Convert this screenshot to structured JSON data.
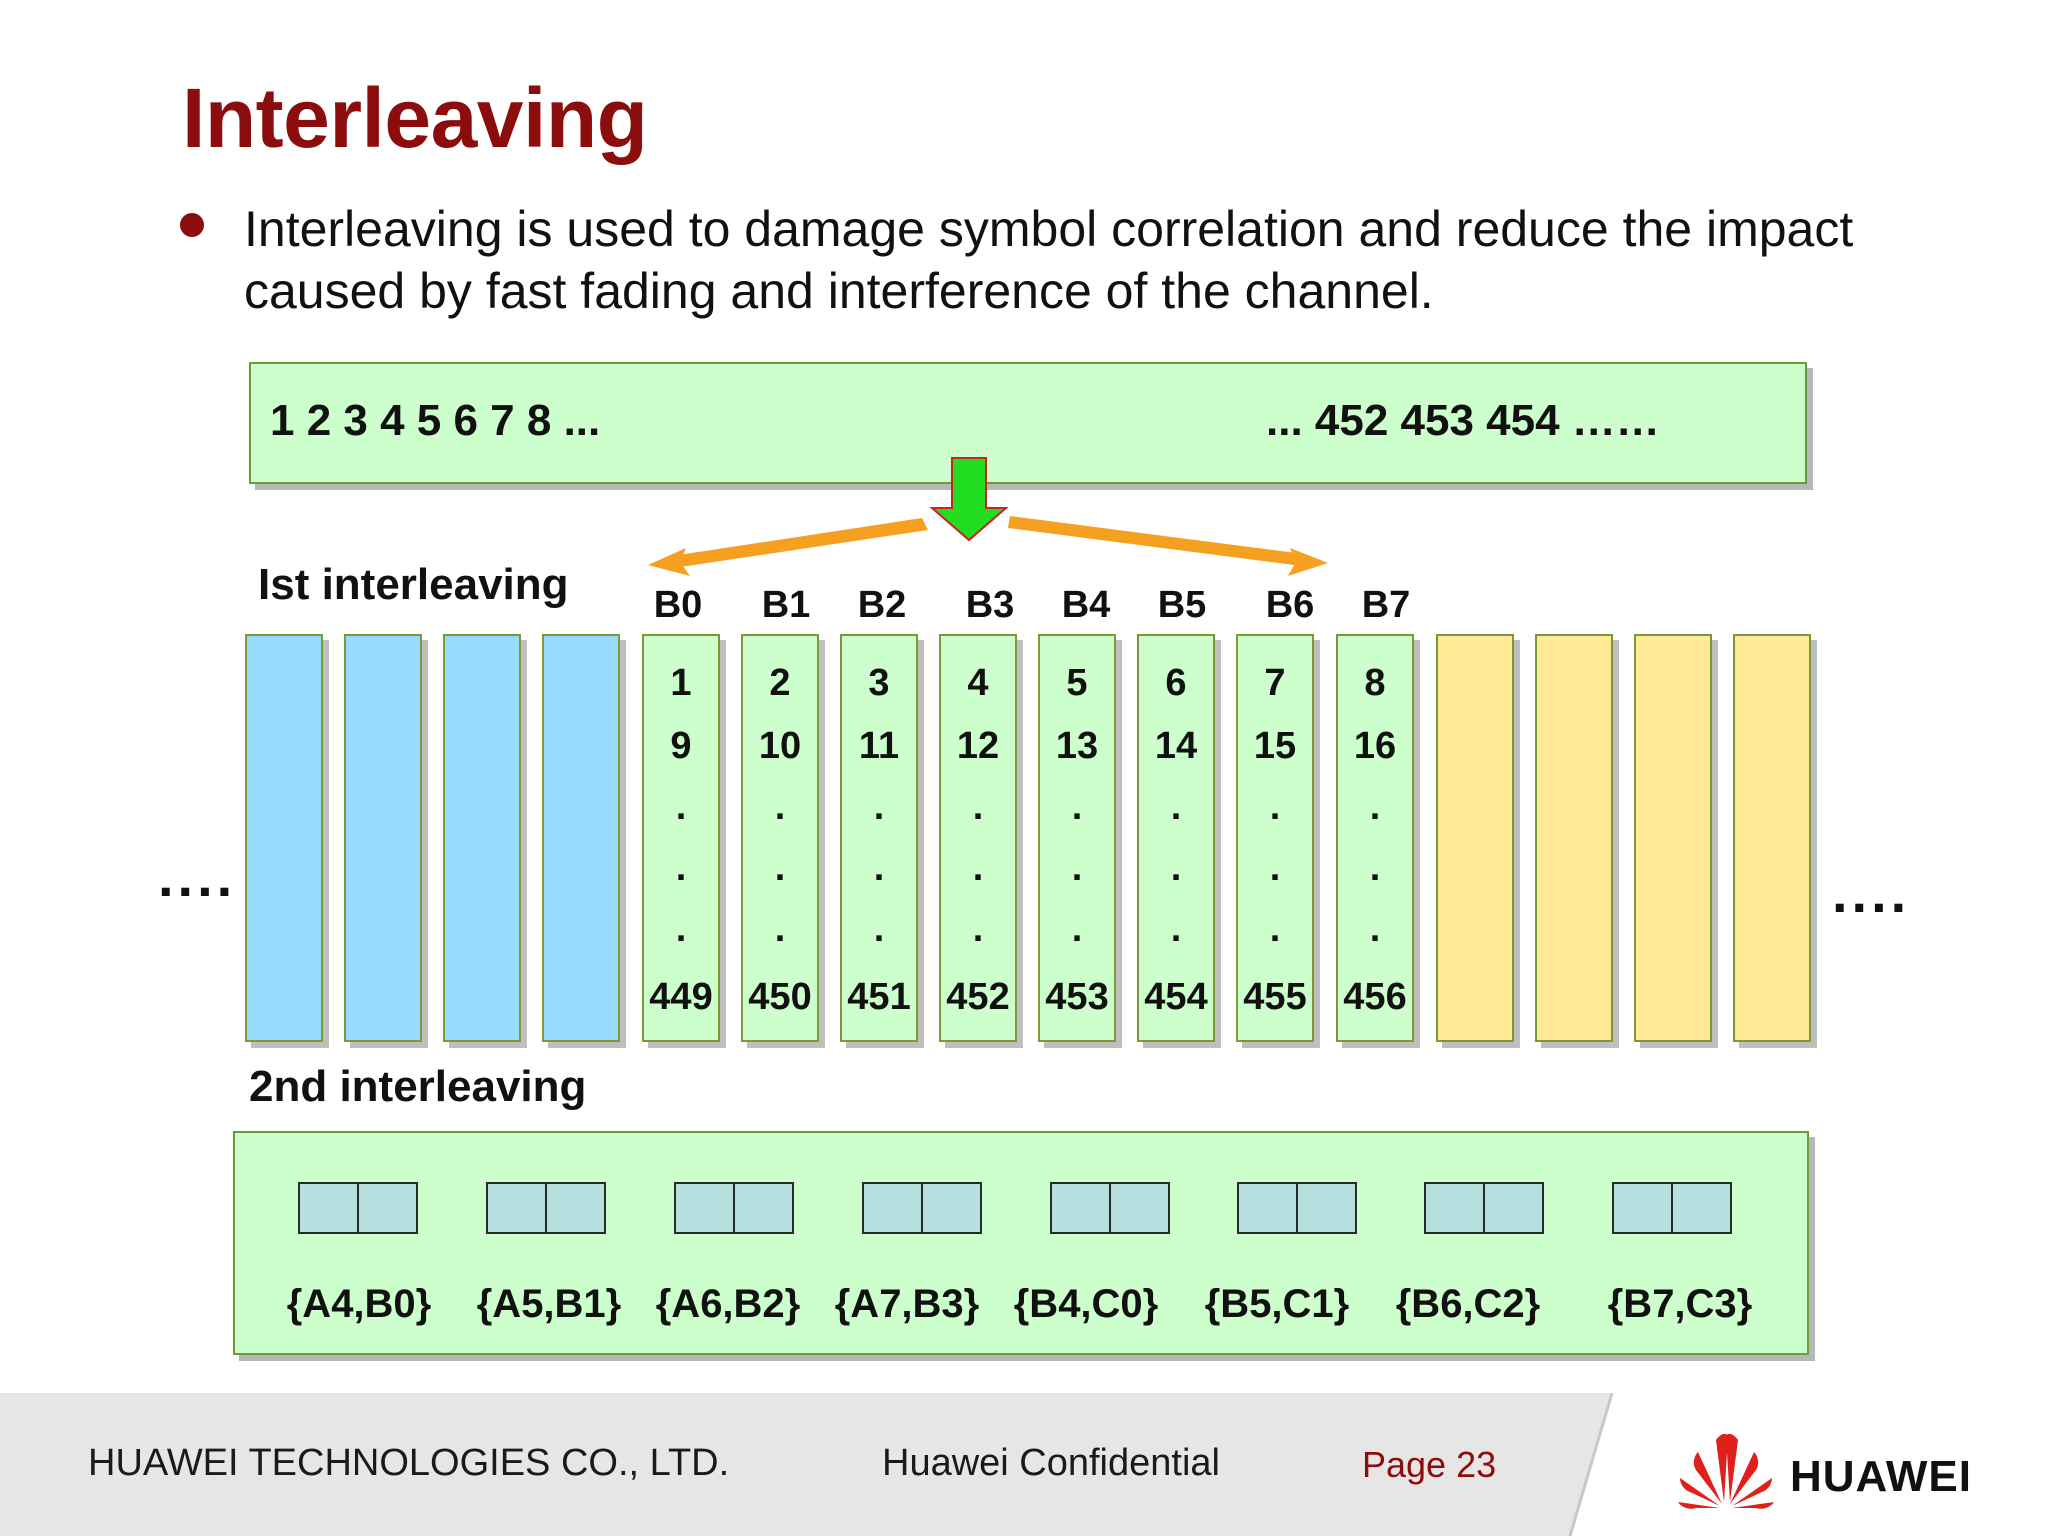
{
  "title": "Interleaving",
  "bullet": "Interleaving is used to damage symbol correlation and reduce the impact caused by fast fading and interference of the channel.",
  "sequence": {
    "left": "1 2 3 4 5 6 7 8 ...",
    "right": "...  452 453 454 ……"
  },
  "first_label": "Ist interleaving",
  "second_label": "2nd interleaving",
  "side_dots": "....",
  "block_labels": [
    "B0",
    "B1",
    "B2",
    "B3",
    "B4",
    "B5",
    "B6",
    "B7"
  ],
  "columns": [
    {
      "top": "1",
      "second": "9",
      "bottom": "449"
    },
    {
      "top": "2",
      "second": "10",
      "bottom": "450"
    },
    {
      "top": "3",
      "second": "11",
      "bottom": "451"
    },
    {
      "top": "4",
      "second": "12",
      "bottom": "452"
    },
    {
      "top": "5",
      "second": "13",
      "bottom": "453"
    },
    {
      "top": "6",
      "second": "14",
      "bottom": "454"
    },
    {
      "top": "7",
      "second": "15",
      "bottom": "455"
    },
    {
      "top": "8",
      "second": "16",
      "bottom": "456"
    }
  ],
  "column_dot": ".",
  "pairs": [
    "{A4,B0}",
    "{A5,B1}",
    "{A6,B2}",
    "{A7,B3}",
    "{B4,C0}",
    "{B5,C1}",
    "{B6,C2}",
    "{B7,C3}"
  ],
  "footer": {
    "company": "HUAWEI TECHNOLOGIES CO., LTD.",
    "confidential": "Huawei Confidential",
    "page": "Page 23",
    "brand": "HUAWEI"
  },
  "colors": {
    "title": "#8b0d0d",
    "green_fill": "#ccffcc",
    "blue_fill": "#99daff",
    "yellow_fill": "#ffe896",
    "arrow_green": "#22dd22",
    "arrow_orange": "#f5a020",
    "logo_red": "#e0201a"
  }
}
